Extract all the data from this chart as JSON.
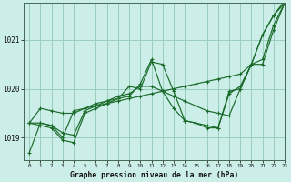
{
  "title": "Graphe pression niveau de la mer (hPa)",
  "bg_color": "#cceee8",
  "grid_color": "#99ccbb",
  "line_color": "#1a6b2a",
  "xlim": [
    -0.5,
    23
  ],
  "ylim": [
    1018.55,
    1021.75
  ],
  "yticks": [
    1019,
    1020,
    1021
  ],
  "xticks": [
    0,
    1,
    2,
    3,
    4,
    5,
    6,
    7,
    8,
    9,
    10,
    11,
    12,
    13,
    14,
    15,
    16,
    17,
    18,
    19,
    20,
    21,
    22,
    23
  ],
  "series": [
    [
      1018.7,
      1019.3,
      1019.25,
      1019.1,
      1019.05,
      1019.55,
      1019.65,
      1019.75,
      1019.85,
      1019.9,
      1020.05,
      1020.05,
      1019.95,
      1019.85,
      1019.75,
      1019.65,
      1019.55,
      1019.5,
      1019.45,
      1020.0,
      1020.5,
      1020.6,
      1021.3,
      1021.75
    ],
    [
      1019.3,
      1019.25,
      1019.2,
      1018.95,
      1018.9,
      1019.5,
      1019.6,
      1019.7,
      1019.8,
      1020.05,
      1020.0,
      1020.55,
      1020.5,
      1019.95,
      1019.35,
      1019.3,
      1019.2,
      1019.2,
      1019.95,
      1020.0,
      1020.5,
      1020.5,
      1021.2,
      1021.75
    ],
    [
      1019.3,
      1019.3,
      1019.25,
      1019.0,
      1019.55,
      1019.6,
      1019.7,
      1019.75,
      1019.8,
      1019.85,
      1020.1,
      1020.6,
      1019.95,
      1019.6,
      1019.35,
      1019.3,
      1019.25,
      1019.2,
      1019.9,
      1020.05,
      1020.5,
      1021.1,
      1021.5,
      1021.8
    ],
    [
      1019.3,
      1019.6,
      1019.55,
      1019.5,
      1019.5,
      1019.6,
      1019.65,
      1019.7,
      1019.75,
      1019.8,
      1019.85,
      1019.9,
      1019.95,
      1020.0,
      1020.05,
      1020.1,
      1020.15,
      1020.2,
      1020.25,
      1020.3,
      1020.5,
      1021.1,
      1021.5,
      1021.75
    ]
  ]
}
